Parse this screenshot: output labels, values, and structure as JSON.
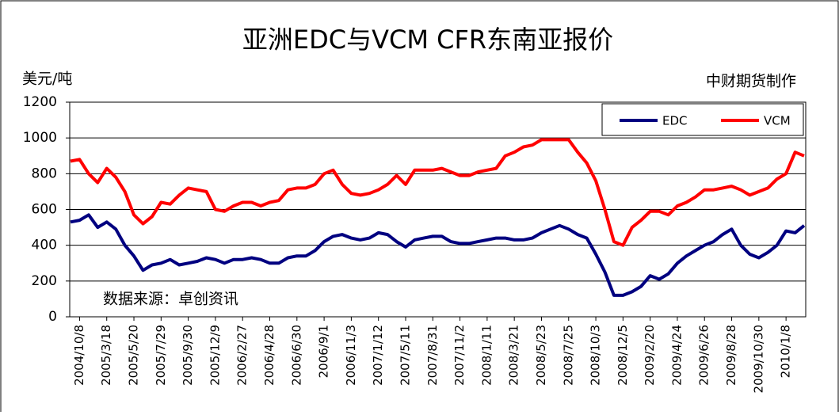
{
  "chart_data": {
    "type": "line",
    "title": "亚洲EDC与VCM CFR东南亚报价",
    "y_label": "美元/吨",
    "credit": "中财期货制作",
    "source": "数据来源：卓创资讯",
    "categories": [
      null,
      "2004/10/8",
      null,
      null,
      "2005/3/18",
      null,
      null,
      "2005/5/20",
      null,
      null,
      "2005/7/29",
      null,
      null,
      "2005/9/30",
      null,
      null,
      "2005/12/9",
      null,
      null,
      "2006/2/27",
      null,
      null,
      "2006/4/28",
      null,
      null,
      "2006/6/30",
      null,
      null,
      "2006/9/1",
      null,
      null,
      "2006/11/3",
      null,
      null,
      "2007/1/12",
      null,
      null,
      "2007/5/11",
      null,
      null,
      "2007/8/31",
      null,
      null,
      "2007/11/2",
      null,
      null,
      "2008/1/11",
      null,
      null,
      "2008/3/21",
      null,
      null,
      "2008/5/23",
      null,
      null,
      "2008/7/25",
      null,
      null,
      "2008/10/3",
      null,
      null,
      "2008/12/5",
      null,
      null,
      "2009/2/20",
      null,
      null,
      "2009/4/24",
      null,
      null,
      "2009/6/26",
      null,
      null,
      "2009/8/28",
      null,
      null,
      "2009/10/30",
      null,
      null,
      "2010/1/8",
      null,
      null
    ],
    "series": [
      {
        "name": "EDC",
        "color": "#000080",
        "values": [
          530,
          540,
          570,
          500,
          530,
          490,
          400,
          340,
          260,
          290,
          300,
          320,
          290,
          300,
          310,
          330,
          320,
          300,
          320,
          320,
          330,
          320,
          300,
          300,
          330,
          340,
          340,
          370,
          420,
          450,
          460,
          440,
          430,
          440,
          470,
          460,
          420,
          390,
          430,
          440,
          450,
          450,
          420,
          410,
          410,
          420,
          430,
          440,
          440,
          430,
          430,
          440,
          470,
          490,
          510,
          490,
          460,
          440,
          350,
          250,
          120,
          120,
          140,
          170,
          230,
          210,
          240,
          300,
          340,
          370,
          400,
          420,
          460,
          490,
          400,
          350,
          330,
          360,
          400,
          480,
          470,
          510
        ]
      },
      {
        "name": "VCM",
        "color": "#ff0000",
        "values": [
          870,
          880,
          800,
          750,
          830,
          780,
          700,
          570,
          520,
          560,
          640,
          630,
          680,
          720,
          710,
          700,
          600,
          590,
          620,
          640,
          640,
          620,
          640,
          650,
          710,
          720,
          720,
          740,
          800,
          820,
          740,
          690,
          680,
          690,
          710,
          740,
          790,
          740,
          820,
          820,
          820,
          830,
          810,
          790,
          790,
          810,
          820,
          830,
          900,
          920,
          950,
          960,
          990,
          990,
          990,
          990,
          920,
          860,
          760,
          600,
          420,
          400,
          500,
          540,
          590,
          590,
          570,
          620,
          640,
          670,
          710,
          710,
          720,
          730,
          710,
          680,
          700,
          720,
          770,
          800,
          920,
          900
        ]
      }
    ],
    "ylim": [
      0,
      1200
    ],
    "yticks": [
      0,
      200,
      400,
      600,
      800,
      1000,
      1200
    ],
    "grid": true,
    "legend": "upper right"
  }
}
